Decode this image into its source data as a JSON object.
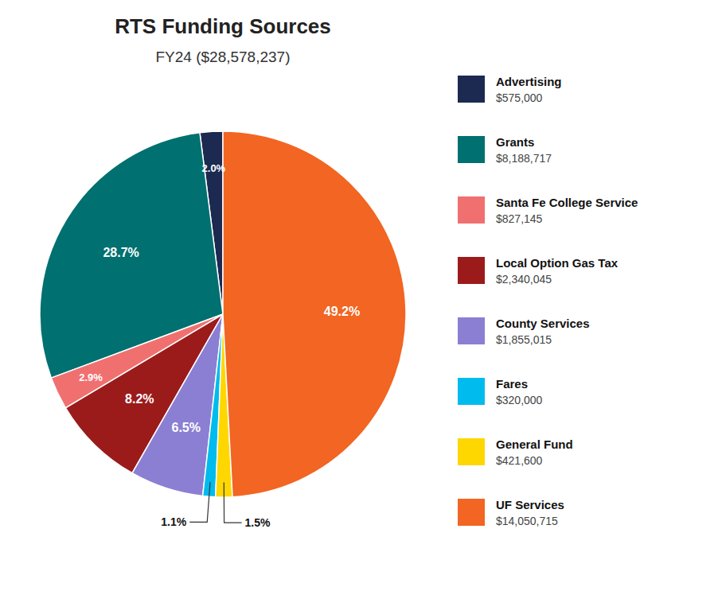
{
  "chart_data": {
    "type": "pie",
    "title": "RTS Funding Sources",
    "subtitle": "FY24 ($28,578,237)",
    "categories": [
      "Advertising",
      "Grants",
      "Santa Fe College Service",
      "Local Option Gas Tax",
      "County Services",
      "Fares",
      "General Fund",
      "UF Services"
    ],
    "values": [
      2.0,
      28.7,
      2.9,
      8.2,
      6.5,
      1.1,
      1.5,
      49.2
    ],
    "value_labels": [
      "2.0%",
      "28.7%",
      "2.9%",
      "8.2%",
      "6.5%",
      "1.1%",
      "1.5%",
      "49.2%"
    ],
    "amounts": [
      575000,
      8188717,
      827145,
      2340045,
      1855015,
      320000,
      421600,
      14050715
    ],
    "amount_labels": [
      "$575,000",
      "$8,188,717",
      "$827,145",
      "$2,340,045",
      "$1,855,015",
      "$320,000",
      "$421,600",
      "$14,050,715"
    ],
    "colors": [
      "#1C2951",
      "#007070",
      "#F07070",
      "#9B1B1B",
      "#8B7FD4",
      "#00BBEE",
      "#FFD700",
      "#F26522"
    ],
    "data_labels": true,
    "legend": "right"
  }
}
